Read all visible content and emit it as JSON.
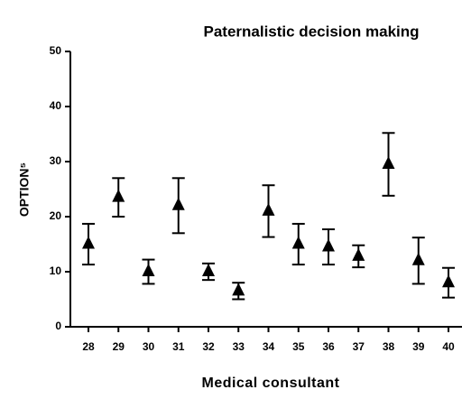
{
  "chart_data": {
    "type": "errorbar",
    "title": "Paternalistic decision making",
    "xlabel": "Medical consultant",
    "ylabel": "OPTION⁵",
    "categories": [
      "28",
      "29",
      "30",
      "31",
      "32",
      "33",
      "34",
      "35",
      "36",
      "37",
      "38",
      "39",
      "40"
    ],
    "values": [
      15,
      23.5,
      10,
      22,
      10,
      6.5,
      21,
      15,
      14.5,
      12.8,
      29.5,
      12,
      8
    ],
    "errors": [
      3.7,
      3.5,
      2.2,
      5,
      1.5,
      1.5,
      4.7,
      3.7,
      3.2,
      2,
      5.7,
      4.2,
      2.7
    ],
    "color": "#000000",
    "ylim": [
      0,
      50
    ],
    "yticks": [
      0,
      10,
      20,
      30,
      40,
      50
    ]
  }
}
